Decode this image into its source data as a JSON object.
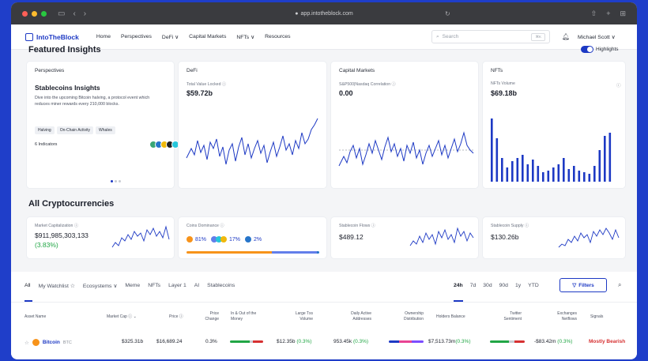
{
  "browser": {
    "url": "app.intotheblock.com"
  },
  "nav": {
    "logo": "IntoTheBlock",
    "items": [
      "Home",
      "Perspectives",
      "DeFi ∨",
      "Capital Markets",
      "NFTs ∨",
      "Resources"
    ],
    "search_placeholder": "Search",
    "search_kbd": "⌘K",
    "user": "Michael Scott ∨"
  },
  "featured": {
    "title": "Featured Insights",
    "toggle_label": "Highlights",
    "perspectives": {
      "label": "Perspectives",
      "title": "Stablecoins Insights",
      "description": "Dive into the upcoming Bitcoin halving, a protocol event which reduces miner rewards every 210,000 blocks.",
      "tags": [
        "Halving",
        "On-Chain Activity",
        "Whales"
      ],
      "indicators": "6 Indicators"
    },
    "defi": {
      "label": "DeFi",
      "metric": "Total Value Locked",
      "value": "$59.72b"
    },
    "capital": {
      "label": "Capital Markets",
      "metric": "S&P500|Nasdaq Correlation",
      "value": "0.00"
    },
    "nfts": {
      "label": "NFTs",
      "metric": "NFTs Volume",
      "value": "$69.18b"
    }
  },
  "all": {
    "title": "All Cryptocurrencies",
    "market_cap": {
      "label": "Market Capitalization",
      "value": "$911,985,303,133",
      "change": "(3.83%)"
    },
    "dominance": {
      "label": "Coins Dominance",
      "btc": "81%",
      "eth": "17%",
      "other": "2%"
    },
    "flows": {
      "label": "Stablecoin Flows",
      "value": "$489.12"
    },
    "supply": {
      "label": "Stablecoin Supply",
      "value": "$130.26b"
    }
  },
  "table": {
    "tabs": [
      "All",
      "My Watchlist ☆",
      "Ecosystems ∨",
      "Meme",
      "NFTs",
      "Layer 1",
      "AI",
      "Stablecoins"
    ],
    "ranges": [
      "24h",
      "7d",
      "30d",
      "90d",
      "1y",
      "YTD"
    ],
    "filters_label": "Filters",
    "headers": {
      "asset": "Asset Name",
      "mcap": "Market Cap",
      "price": "Price",
      "price_change": "Price Change",
      "money": "In & Out of the Money",
      "large_tx": "Large Txs Volume",
      "daa": "Daily Active Addresses",
      "ownership": "Ownership Distribution",
      "holders": "Holders Balance",
      "twitter": "Twitter Sentiment",
      "netflows": "Exchanges Netflows",
      "signals": "Signals"
    },
    "row": {
      "name": "Bitcoin",
      "ticker": "BTC",
      "mcap": "$325.31b",
      "price": "$16,689.24",
      "change": "0.3%",
      "large_tx": "$12.35b",
      "large_tx_pct": "(0.3%)",
      "daa": "953.45k",
      "daa_pct": "(0.3%)",
      "holders": "$7,513.73m",
      "holders_pct": "(0.3%)",
      "netflows": "-$83.42m",
      "netflows_pct": "(0.3%)",
      "signal": "Mostly Bearish"
    }
  },
  "colors": {
    "brand": "#1d39c4",
    "green": "#21a645",
    "red": "#d63031",
    "btc": "#f7931a",
    "eth": "#627eea"
  }
}
